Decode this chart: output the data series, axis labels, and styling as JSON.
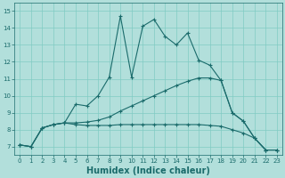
{
  "xlabel": "Humidex (Indice chaleur)",
  "xlim": [
    -0.5,
    23.5
  ],
  "ylim": [
    6.5,
    15.5
  ],
  "xticks": [
    0,
    1,
    2,
    3,
    4,
    5,
    6,
    7,
    8,
    9,
    10,
    11,
    12,
    13,
    14,
    15,
    16,
    17,
    18,
    19,
    20,
    21,
    22,
    23
  ],
  "yticks": [
    7,
    8,
    9,
    10,
    11,
    12,
    13,
    14,
    15
  ],
  "bg_color": "#b2dfdb",
  "line_color": "#1a6b6b",
  "grid_color": "#80cbc4",
  "series": [
    {
      "x": [
        0,
        1,
        2,
        3,
        4,
        5,
        6,
        7,
        8,
        9,
        10,
        11,
        12,
        13,
        14,
        15,
        16,
        17,
        18,
        19,
        20,
        21,
        22,
        23
      ],
      "y": [
        7.1,
        7.0,
        8.1,
        8.3,
        8.4,
        9.5,
        9.4,
        10.0,
        11.1,
        14.7,
        11.1,
        14.1,
        14.5,
        13.5,
        13.0,
        13.7,
        12.1,
        11.8,
        10.9,
        9.0,
        8.5,
        7.5,
        6.8,
        6.8
      ]
    },
    {
      "x": [
        0,
        1,
        2,
        3,
        4,
        5,
        6,
        7,
        8,
        9,
        10,
        11,
        12,
        13,
        14,
        15,
        16,
        17,
        18,
        19,
        20,
        21,
        22,
        23
      ],
      "y": [
        7.1,
        7.0,
        8.1,
        8.3,
        8.4,
        8.4,
        8.45,
        8.55,
        8.75,
        9.1,
        9.4,
        9.7,
        10.0,
        10.3,
        10.6,
        10.85,
        11.05,
        11.05,
        10.9,
        9.0,
        8.5,
        7.5,
        6.8,
        6.8
      ]
    },
    {
      "x": [
        0,
        1,
        2,
        3,
        4,
        5,
        6,
        7,
        8,
        9,
        10,
        11,
        12,
        13,
        14,
        15,
        16,
        17,
        18,
        19,
        20,
        21,
        22,
        23
      ],
      "y": [
        7.1,
        7.0,
        8.1,
        8.3,
        8.4,
        8.3,
        8.25,
        8.25,
        8.25,
        8.3,
        8.3,
        8.3,
        8.3,
        8.3,
        8.3,
        8.3,
        8.3,
        8.25,
        8.2,
        8.0,
        7.8,
        7.5,
        6.8,
        6.8
      ]
    }
  ]
}
